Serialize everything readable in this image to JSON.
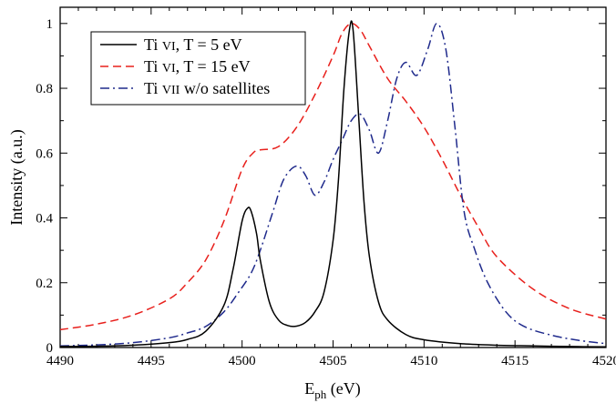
{
  "chart_data": {
    "type": "line",
    "xlabel_main": "E",
    "xlabel_sub": "ph",
    "xlabel_unit": " (eV)",
    "ylabel": "Intensity (a.u.)",
    "xlim": [
      4490,
      4520
    ],
    "ylim": [
      0,
      1.05
    ],
    "xticks": [
      4490,
      4495,
      4500,
      4505,
      4510,
      4515,
      4520
    ],
    "yticks": [
      0,
      0.2,
      0.4,
      0.6,
      0.8,
      1
    ],
    "ytick_labels": [
      "0",
      "0.2",
      "0.4",
      "0.6",
      "0.8",
      "1"
    ],
    "legend_position": "top-left",
    "series": [
      {
        "legend_pre": "Ti ",
        "legend_sc": "VI",
        "legend_post": ", T =   5 eV",
        "color": "#000000",
        "dash": "",
        "x": [
          4490,
          4492,
          4494,
          4496,
          4497,
          4498,
          4499,
          4499.5,
          4500,
          4500.3,
          4500.5,
          4500.8,
          4501,
          4501.5,
          4502,
          4502.5,
          4503,
          4503.5,
          4504,
          4504.5,
          4505,
          4505.3,
          4505.6,
          4505.9,
          4506.1,
          4506.4,
          4506.7,
          4507,
          4507.5,
          4508,
          4509,
          4510,
          4512,
          4514,
          4516,
          4518,
          4520
        ],
        "y": [
          0.003,
          0.004,
          0.007,
          0.015,
          0.025,
          0.05,
          0.13,
          0.24,
          0.39,
          0.43,
          0.42,
          0.35,
          0.27,
          0.14,
          0.085,
          0.068,
          0.066,
          0.078,
          0.11,
          0.17,
          0.33,
          0.52,
          0.8,
          0.98,
          0.98,
          0.72,
          0.45,
          0.28,
          0.14,
          0.085,
          0.04,
          0.024,
          0.012,
          0.007,
          0.005,
          0.003,
          0.002
        ]
      },
      {
        "legend_pre": "Ti ",
        "legend_sc": "VI",
        "legend_post": ", T = 15 eV",
        "color": "#e8201c",
        "dash": "9,5",
        "x": [
          4490,
          4492,
          4494,
          4496,
          4497,
          4498,
          4499,
          4500,
          4500.6,
          4501,
          4502,
          4503,
          4504,
          4505,
          4505.5,
          4506,
          4506.5,
          4507,
          4508,
          4509,
          4510,
          4511,
          4512,
          4513,
          4514,
          4516,
          4518,
          4520
        ],
        "y": [
          0.055,
          0.072,
          0.1,
          0.15,
          0.2,
          0.27,
          0.39,
          0.55,
          0.6,
          0.61,
          0.62,
          0.68,
          0.78,
          0.9,
          0.97,
          1.0,
          0.98,
          0.93,
          0.83,
          0.76,
          0.68,
          0.58,
          0.47,
          0.37,
          0.28,
          0.18,
          0.12,
          0.088
        ]
      },
      {
        "legend_pre": "Ti ",
        "legend_sc": "VII",
        "legend_post": " w/o satellites",
        "color": "#1f2a8c",
        "dash": "10,4,2,4",
        "x": [
          4490,
          4492,
          4494,
          4496,
          4497,
          4498,
          4499,
          4499.8,
          4500.5,
          4501,
          4501.7,
          4502.3,
          4503,
          4503.5,
          4504,
          4504.5,
          4505,
          4505.5,
          4506,
          4506.5,
          4507,
          4507.5,
          4508,
          4508.5,
          4509,
          4509.6,
          4510.2,
          4510.7,
          4511.2,
          4511.7,
          4512.2,
          4512.8,
          4513.5,
          4514.5,
          4515.5,
          4517,
          4518.5,
          4520
        ],
        "y": [
          0.005,
          0.008,
          0.015,
          0.03,
          0.045,
          0.065,
          0.11,
          0.17,
          0.23,
          0.3,
          0.42,
          0.52,
          0.56,
          0.53,
          0.47,
          0.51,
          0.58,
          0.64,
          0.7,
          0.72,
          0.67,
          0.6,
          0.7,
          0.83,
          0.88,
          0.84,
          0.92,
          1.0,
          0.92,
          0.68,
          0.42,
          0.3,
          0.2,
          0.11,
          0.065,
          0.038,
          0.022,
          0.012
        ]
      }
    ]
  }
}
